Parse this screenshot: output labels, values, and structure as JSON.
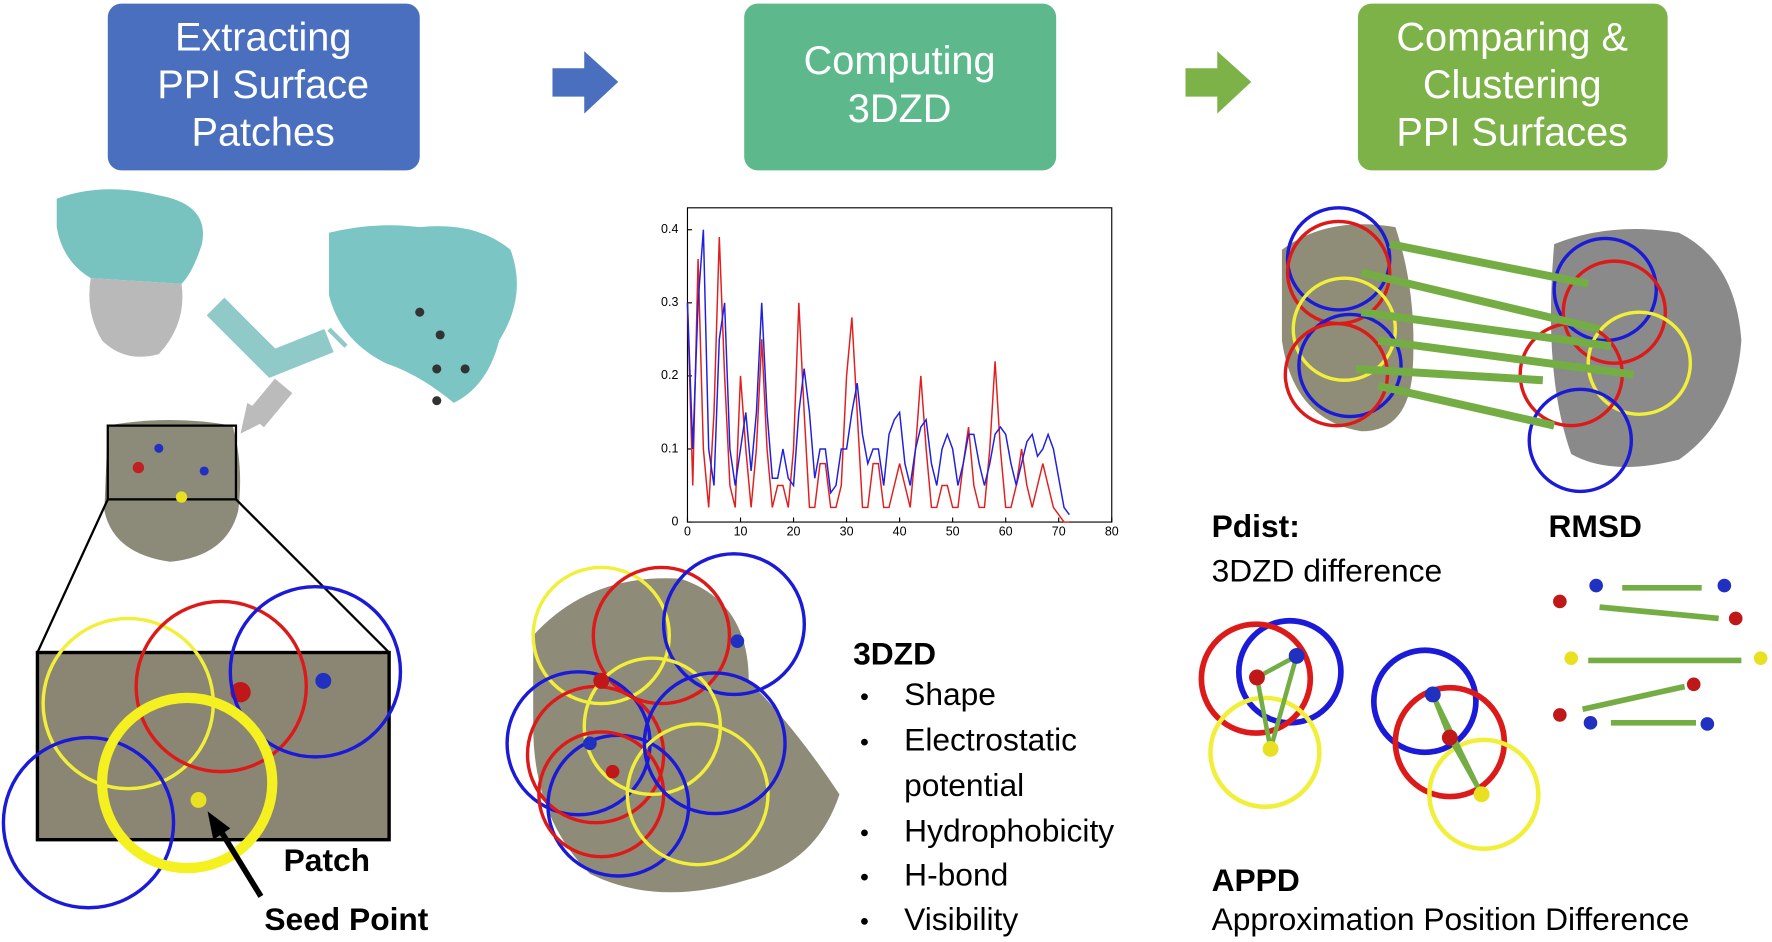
{
  "header": {
    "steps": [
      {
        "lines": [
          "Extracting",
          "PPI Surface",
          "Patches"
        ]
      },
      {
        "lines": [
          "Computing",
          "3DZD"
        ]
      },
      {
        "lines": [
          "Comparing &",
          "Clustering",
          "PPI Surfaces"
        ]
      }
    ]
  },
  "labels": {
    "patch": "Patch",
    "seed_point": "Seed Point",
    "descriptor_title": "3DZD",
    "descriptor_items": [
      "Shape",
      "Electrostatic",
      "potential",
      "Hydrophobicity",
      "H-bond",
      "Visibility"
    ],
    "pdist_title": "Pdist:",
    "pdist_text": "3DZD difference",
    "rmsd_title": "RMSD",
    "appd_title": "APPD",
    "appd_text": "Approximation Position Difference"
  },
  "chart_data": {
    "type": "line",
    "x": [
      0,
      1,
      2,
      3,
      4,
      5,
      6,
      7,
      8,
      9,
      10,
      11,
      12,
      13,
      14,
      15,
      16,
      17,
      18,
      19,
      20,
      21,
      22,
      23,
      24,
      25,
      26,
      27,
      28,
      29,
      30,
      31,
      32,
      33,
      34,
      35,
      36,
      37,
      38,
      39,
      40,
      41,
      42,
      43,
      44,
      45,
      46,
      47,
      48,
      49,
      50,
      51,
      52,
      53,
      54,
      55,
      56,
      57,
      58,
      59,
      60,
      61,
      62,
      63,
      64,
      65,
      66,
      67,
      68,
      69,
      70,
      71,
      72
    ],
    "series": [
      {
        "color": "#e02020",
        "values": [
          0.3,
          0.05,
          0.36,
          0.1,
          0.02,
          0.15,
          0.39,
          0.2,
          0.05,
          0.02,
          0.2,
          0.1,
          0.02,
          0.1,
          0.25,
          0.1,
          0.02,
          0.05,
          0.05,
          0.02,
          0.1,
          0.3,
          0.15,
          0.02,
          0.02,
          0.08,
          0.08,
          0.02,
          0.02,
          0.05,
          0.2,
          0.28,
          0.15,
          0.02,
          0.02,
          0.08,
          0.08,
          0.02,
          0.02,
          0.05,
          0.08,
          0.05,
          0.02,
          0.1,
          0.2,
          0.1,
          0.02,
          0.02,
          0.05,
          0.05,
          0.02,
          0.02,
          0.08,
          0.13,
          0.05,
          0.02,
          0.02,
          0.1,
          0.22,
          0.1,
          0.02,
          0.02,
          0.05,
          0.1,
          0.05,
          0.02,
          0.05,
          0.08,
          0.05,
          0.02,
          0.01,
          0,
          0
        ]
      },
      {
        "color": "#2020e0",
        "values": [
          0.3,
          0.1,
          0.3,
          0.4,
          0.1,
          0.05,
          0.25,
          0.3,
          0.1,
          0.05,
          0.1,
          0.15,
          0.07,
          0.15,
          0.3,
          0.15,
          0.06,
          0.06,
          0.1,
          0.06,
          0.05,
          0.15,
          0.21,
          0.15,
          0.06,
          0.1,
          0.1,
          0.04,
          0.05,
          0.1,
          0.1,
          0.15,
          0.19,
          0.12,
          0.08,
          0.1,
          0.1,
          0.05,
          0.12,
          0.14,
          0.15,
          0.08,
          0.05,
          0.1,
          0.13,
          0.14,
          0.08,
          0.05,
          0.1,
          0.12,
          0.1,
          0.05,
          0.08,
          0.12,
          0.12,
          0.08,
          0.05,
          0.08,
          0.12,
          0.13,
          0.12,
          0.08,
          0.05,
          0.08,
          0.11,
          0.12,
          0.09,
          0.1,
          0.12,
          0.1,
          0.06,
          0.02,
          0.01
        ]
      }
    ],
    "xlim": [
      0,
      80
    ],
    "ylim": [
      0,
      0.43
    ],
    "xticks": [
      0,
      10,
      20,
      30,
      40,
      50,
      60,
      70,
      80
    ],
    "yticks": [
      0,
      0.1,
      0.2,
      0.3,
      0.4
    ]
  }
}
